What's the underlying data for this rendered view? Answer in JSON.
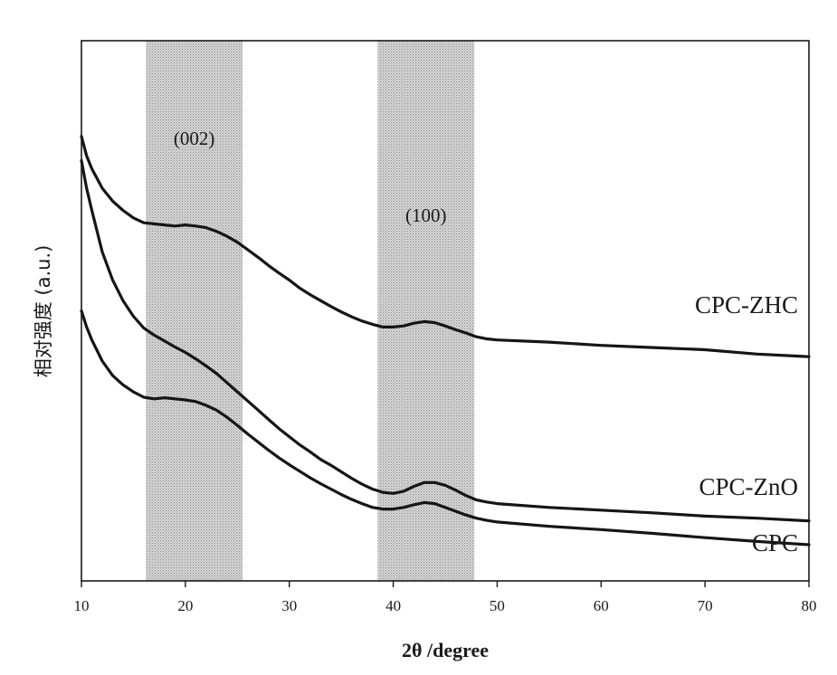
{
  "chart_data": {
    "type": "line",
    "xlabel": "2θ /degree",
    "ylabel": "相对强度 (a.u.)",
    "xlim": [
      10,
      80
    ],
    "x_ticks": [
      "10",
      "20",
      "30",
      "40",
      "50",
      "60",
      "70",
      "80"
    ],
    "y_ticks_shown": false,
    "ylim": [
      0,
      100
    ],
    "grid": false,
    "legend": "none (series labelled inline at right)",
    "shaded_bands": [
      {
        "label": "(002)",
        "x_range": [
          16.2,
          25.5
        ],
        "color": "#c4c4c4"
      },
      {
        "label": "(100)",
        "x_range": [
          38.5,
          47.8
        ],
        "color": "#c4c4c4"
      }
    ],
    "series": [
      {
        "name": "CPC-ZHC",
        "points": [
          [
            10,
            82.3
          ],
          [
            10.5,
            78.7
          ],
          [
            11,
            76.3
          ],
          [
            12,
            72.7
          ],
          [
            13,
            70.3
          ],
          [
            14,
            68.6
          ],
          [
            15,
            67.2
          ],
          [
            16,
            66.3
          ],
          [
            17,
            66.1
          ],
          [
            18,
            65.9
          ],
          [
            19,
            65.7
          ],
          [
            20,
            65.9
          ],
          [
            21,
            65.7
          ],
          [
            22,
            65.4
          ],
          [
            23,
            64.7
          ],
          [
            24,
            63.8
          ],
          [
            25,
            62.7
          ],
          [
            26,
            61.3
          ],
          [
            27,
            59.9
          ],
          [
            28,
            58.4
          ],
          [
            29,
            57.0
          ],
          [
            30,
            55.7
          ],
          [
            31,
            54.2
          ],
          [
            32,
            53.0
          ],
          [
            33,
            51.9
          ],
          [
            34,
            50.8
          ],
          [
            35,
            49.8
          ],
          [
            36,
            48.9
          ],
          [
            37,
            48.1
          ],
          [
            38,
            47.5
          ],
          [
            39,
            47.0
          ],
          [
            40,
            47.0
          ],
          [
            41,
            47.2
          ],
          [
            42,
            47.7
          ],
          [
            43,
            48.0
          ],
          [
            44,
            47.8
          ],
          [
            45,
            47.2
          ],
          [
            46,
            46.5
          ],
          [
            47,
            45.9
          ],
          [
            48,
            45.2
          ],
          [
            49,
            44.8
          ],
          [
            50,
            44.6
          ],
          [
            55,
            44.2
          ],
          [
            60,
            43.6
          ],
          [
            65,
            43.2
          ],
          [
            70,
            42.8
          ],
          [
            75,
            42.0
          ],
          [
            80,
            41.5
          ]
        ]
      },
      {
        "name": "CPC-ZnO",
        "points": [
          [
            10,
            77.8
          ],
          [
            10.5,
            72.7
          ],
          [
            11,
            68.6
          ],
          [
            12,
            60.9
          ],
          [
            13,
            55.7
          ],
          [
            14,
            51.9
          ],
          [
            15,
            49.0
          ],
          [
            16,
            46.8
          ],
          [
            17,
            45.5
          ],
          [
            18,
            44.4
          ],
          [
            19,
            43.3
          ],
          [
            20,
            42.3
          ],
          [
            21,
            41.1
          ],
          [
            22,
            39.8
          ],
          [
            23,
            38.4
          ],
          [
            24,
            36.7
          ],
          [
            25,
            35.0
          ],
          [
            26,
            33.3
          ],
          [
            27,
            31.6
          ],
          [
            28,
            29.9
          ],
          [
            29,
            28.2
          ],
          [
            30,
            26.7
          ],
          [
            31,
            25.2
          ],
          [
            32,
            23.9
          ],
          [
            33,
            22.5
          ],
          [
            34,
            21.4
          ],
          [
            35,
            20.2
          ],
          [
            36,
            19.0
          ],
          [
            37,
            17.9
          ],
          [
            38,
            17.0
          ],
          [
            39,
            16.4
          ],
          [
            40,
            16.2
          ],
          [
            41,
            16.6
          ],
          [
            42,
            17.5
          ],
          [
            43,
            18.2
          ],
          [
            44,
            18.2
          ],
          [
            45,
            17.7
          ],
          [
            46,
            16.8
          ],
          [
            47,
            15.8
          ],
          [
            48,
            15.0
          ],
          [
            49,
            14.6
          ],
          [
            50,
            14.3
          ],
          [
            55,
            13.6
          ],
          [
            60,
            13.1
          ],
          [
            65,
            12.6
          ],
          [
            70,
            12.0
          ],
          [
            75,
            11.6
          ],
          [
            80,
            11.1
          ]
        ]
      },
      {
        "name": "CPC",
        "points": [
          [
            10,
            50.0
          ],
          [
            10.5,
            47.0
          ],
          [
            11,
            44.6
          ],
          [
            12,
            40.7
          ],
          [
            13,
            38.0
          ],
          [
            14,
            36.3
          ],
          [
            15,
            35.0
          ],
          [
            16,
            34.0
          ],
          [
            17,
            33.7
          ],
          [
            18,
            33.9
          ],
          [
            19,
            33.7
          ],
          [
            20,
            33.5
          ],
          [
            21,
            33.2
          ],
          [
            22,
            32.5
          ],
          [
            23,
            31.6
          ],
          [
            24,
            30.3
          ],
          [
            25,
            28.8
          ],
          [
            26,
            27.2
          ],
          [
            27,
            25.7
          ],
          [
            28,
            24.2
          ],
          [
            29,
            22.8
          ],
          [
            30,
            21.5
          ],
          [
            31,
            20.3
          ],
          [
            32,
            19.1
          ],
          [
            33,
            18.0
          ],
          [
            34,
            17.0
          ],
          [
            35,
            16.0
          ],
          [
            36,
            15.1
          ],
          [
            37,
            14.3
          ],
          [
            38,
            13.6
          ],
          [
            39,
            13.3
          ],
          [
            40,
            13.3
          ],
          [
            41,
            13.6
          ],
          [
            42,
            14.1
          ],
          [
            43,
            14.5
          ],
          [
            44,
            14.3
          ],
          [
            45,
            13.6
          ],
          [
            46,
            12.9
          ],
          [
            47,
            12.2
          ],
          [
            48,
            11.6
          ],
          [
            49,
            11.2
          ],
          [
            50,
            10.9
          ],
          [
            55,
            10.1
          ],
          [
            60,
            9.5
          ],
          [
            65,
            8.8
          ],
          [
            70,
            8.0
          ],
          [
            75,
            7.3
          ],
          [
            80,
            6.7
          ]
        ]
      }
    ]
  }
}
